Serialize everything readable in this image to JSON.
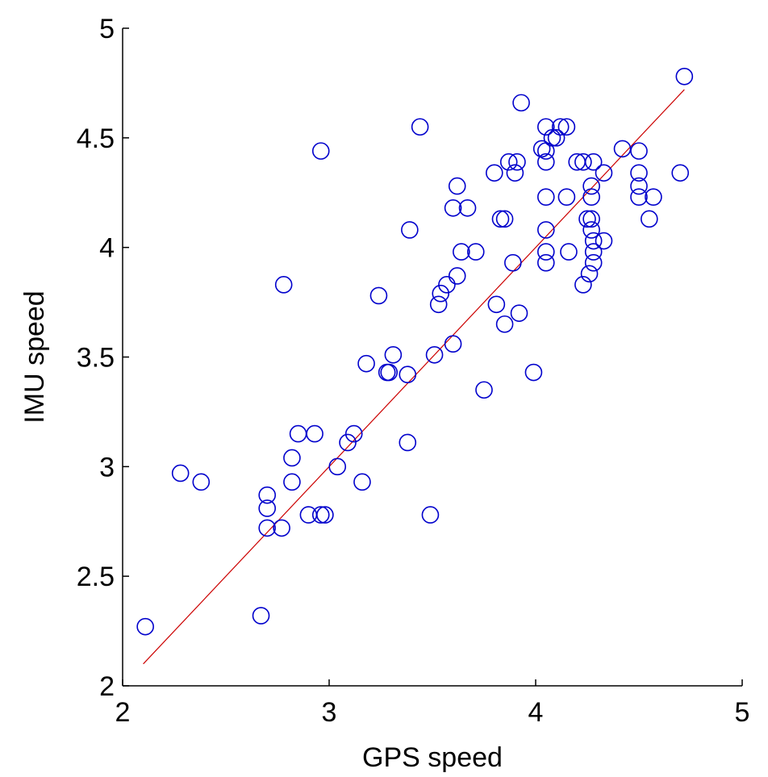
{
  "chart_data": {
    "type": "scatter",
    "title": "",
    "xlabel": "GPS speed",
    "ylabel": "IMU speed",
    "xlim": [
      2,
      5
    ],
    "ylim": [
      2,
      5
    ],
    "xticks": [
      "2",
      "3",
      "4",
      "5"
    ],
    "yticks": [
      "2",
      "2.5",
      "3",
      "3.5",
      "4",
      "4.5",
      "5"
    ],
    "grid": false,
    "legend": "none",
    "colors": {
      "points": "#0000cc",
      "fit_line": "#cc0000",
      "axes": "#000000"
    },
    "fit_line": {
      "x": [
        2.1,
        4.72
      ],
      "y": [
        2.1,
        4.72
      ]
    },
    "points": [
      {
        "x": 2.11,
        "y": 2.27
      },
      {
        "x": 2.28,
        "y": 2.97
      },
      {
        "x": 2.38,
        "y": 2.93
      },
      {
        "x": 2.67,
        "y": 2.32
      },
      {
        "x": 2.7,
        "y": 2.87
      },
      {
        "x": 2.7,
        "y": 2.81
      },
      {
        "x": 2.7,
        "y": 2.72
      },
      {
        "x": 2.77,
        "y": 2.72
      },
      {
        "x": 2.78,
        "y": 3.83
      },
      {
        "x": 2.82,
        "y": 3.04
      },
      {
        "x": 2.82,
        "y": 2.93
      },
      {
        "x": 2.85,
        "y": 3.15
      },
      {
        "x": 2.9,
        "y": 2.78
      },
      {
        "x": 2.93,
        "y": 3.15
      },
      {
        "x": 2.96,
        "y": 4.44
      },
      {
        "x": 2.96,
        "y": 2.78
      },
      {
        "x": 2.98,
        "y": 2.78
      },
      {
        "x": 3.04,
        "y": 3.0
      },
      {
        "x": 3.09,
        "y": 3.11
      },
      {
        "x": 3.12,
        "y": 3.15
      },
      {
        "x": 3.16,
        "y": 2.93
      },
      {
        "x": 3.18,
        "y": 3.47
      },
      {
        "x": 3.24,
        "y": 3.78
      },
      {
        "x": 3.28,
        "y": 3.43
      },
      {
        "x": 3.29,
        "y": 3.43
      },
      {
        "x": 3.31,
        "y": 3.51
      },
      {
        "x": 3.38,
        "y": 3.42
      },
      {
        "x": 3.38,
        "y": 3.11
      },
      {
        "x": 3.39,
        "y": 4.08
      },
      {
        "x": 3.44,
        "y": 4.55
      },
      {
        "x": 3.49,
        "y": 2.78
      },
      {
        "x": 3.51,
        "y": 3.51
      },
      {
        "x": 3.53,
        "y": 3.74
      },
      {
        "x": 3.54,
        "y": 3.79
      },
      {
        "x": 3.57,
        "y": 3.83
      },
      {
        "x": 3.6,
        "y": 3.56
      },
      {
        "x": 3.6,
        "y": 4.18
      },
      {
        "x": 3.62,
        "y": 4.28
      },
      {
        "x": 3.62,
        "y": 3.87
      },
      {
        "x": 3.64,
        "y": 3.98
      },
      {
        "x": 3.67,
        "y": 4.18
      },
      {
        "x": 3.71,
        "y": 3.98
      },
      {
        "x": 3.75,
        "y": 3.35
      },
      {
        "x": 3.8,
        "y": 4.34
      },
      {
        "x": 3.81,
        "y": 3.74
      },
      {
        "x": 3.83,
        "y": 4.13
      },
      {
        "x": 3.85,
        "y": 4.13
      },
      {
        "x": 3.85,
        "y": 3.65
      },
      {
        "x": 3.87,
        "y": 4.39
      },
      {
        "x": 3.89,
        "y": 3.93
      },
      {
        "x": 3.9,
        "y": 4.34
      },
      {
        "x": 3.91,
        "y": 4.39
      },
      {
        "x": 3.92,
        "y": 3.7
      },
      {
        "x": 3.93,
        "y": 4.66
      },
      {
        "x": 3.99,
        "y": 3.43
      },
      {
        "x": 4.03,
        "y": 4.45
      },
      {
        "x": 4.05,
        "y": 4.44
      },
      {
        "x": 4.05,
        "y": 4.55
      },
      {
        "x": 4.05,
        "y": 4.39
      },
      {
        "x": 4.05,
        "y": 4.23
      },
      {
        "x": 4.05,
        "y": 4.08
      },
      {
        "x": 4.05,
        "y": 3.98
      },
      {
        "x": 4.05,
        "y": 3.93
      },
      {
        "x": 4.08,
        "y": 4.5
      },
      {
        "x": 4.1,
        "y": 4.5
      },
      {
        "x": 4.12,
        "y": 4.55
      },
      {
        "x": 4.15,
        "y": 4.55
      },
      {
        "x": 4.15,
        "y": 4.23
      },
      {
        "x": 4.16,
        "y": 3.98
      },
      {
        "x": 4.2,
        "y": 4.39
      },
      {
        "x": 4.23,
        "y": 4.39
      },
      {
        "x": 4.23,
        "y": 3.83
      },
      {
        "x": 4.25,
        "y": 4.13
      },
      {
        "x": 4.26,
        "y": 3.88
      },
      {
        "x": 4.27,
        "y": 4.28
      },
      {
        "x": 4.27,
        "y": 4.23
      },
      {
        "x": 4.27,
        "y": 4.13
      },
      {
        "x": 4.27,
        "y": 4.08
      },
      {
        "x": 4.28,
        "y": 4.03
      },
      {
        "x": 4.28,
        "y": 3.98
      },
      {
        "x": 4.28,
        "y": 3.93
      },
      {
        "x": 4.28,
        "y": 4.39
      },
      {
        "x": 4.33,
        "y": 4.34
      },
      {
        "x": 4.33,
        "y": 4.03
      },
      {
        "x": 4.42,
        "y": 4.45
      },
      {
        "x": 4.5,
        "y": 4.44
      },
      {
        "x": 4.5,
        "y": 4.34
      },
      {
        "x": 4.5,
        "y": 4.28
      },
      {
        "x": 4.5,
        "y": 4.23
      },
      {
        "x": 4.55,
        "y": 4.13
      },
      {
        "x": 4.57,
        "y": 4.23
      },
      {
        "x": 4.7,
        "y": 4.34
      },
      {
        "x": 4.72,
        "y": 4.78
      }
    ]
  }
}
